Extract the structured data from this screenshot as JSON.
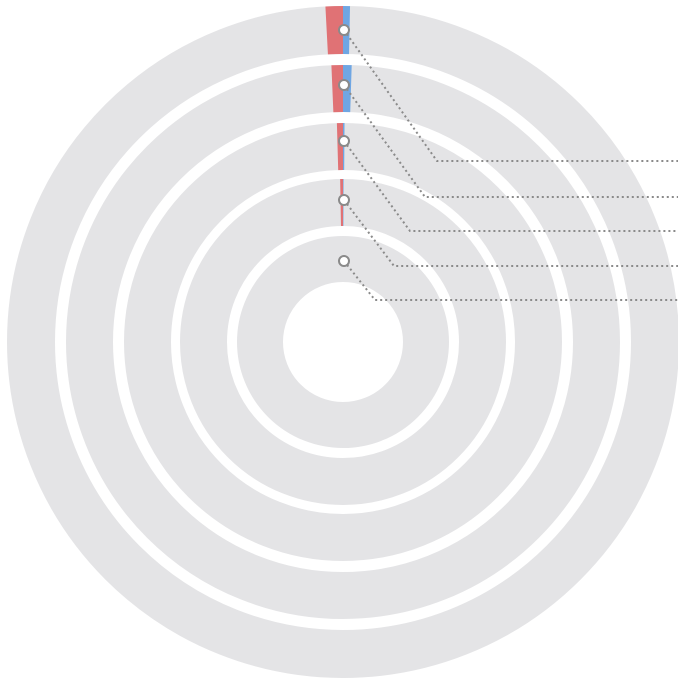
{
  "chart_data": {
    "type": "radial-bar",
    "title": "",
    "colors": {
      "track": "#e4e4e6",
      "negative": "#e07275",
      "positive": "#6fa6e3",
      "marker": "#8a8a8a",
      "leader": "#8a8a8a"
    },
    "rings": [
      {
        "negative": -1.5,
        "positive": 0.6
      },
      {
        "negative": -1.2,
        "positive": 0.9
      },
      {
        "negative": -0.8,
        "positive": 0.2
      },
      {
        "negative": -0.5,
        "positive": 0.1
      },
      {
        "negative": 0.0,
        "positive": 0.0
      }
    ],
    "legend_labels": [
      "",
      "",
      "",
      "",
      ""
    ]
  }
}
